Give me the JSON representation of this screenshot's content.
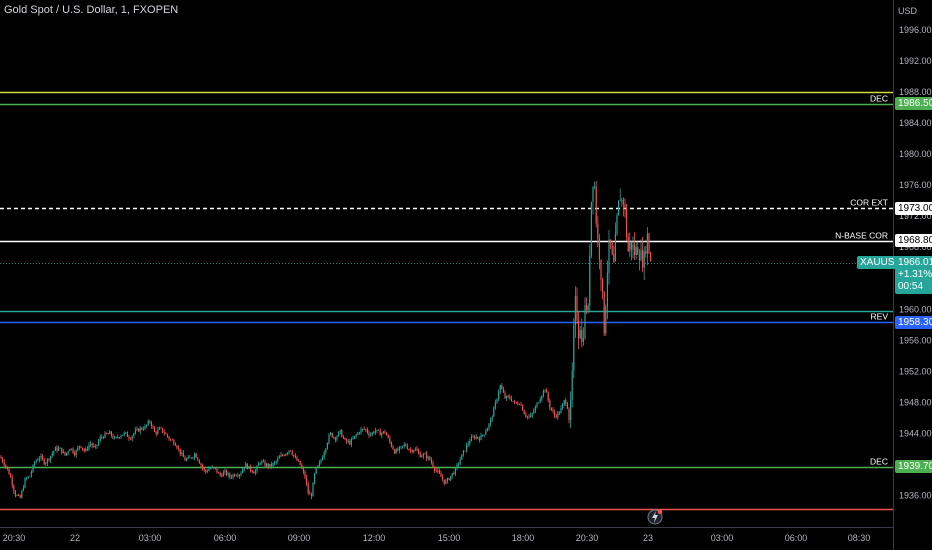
{
  "title": "Gold Spot / U.S. Dollar, 1, FXOPEN",
  "currency": "USD",
  "chart_data": {
    "type": "candlestick",
    "y_axis": {
      "ticks": [
        "1996.00",
        "1992.00",
        "1988.00",
        "1984.00",
        "1980.00",
        "1976.00",
        "1972.00",
        "1968.00",
        "1964.00",
        "1960.00",
        "1956.00",
        "1952.00",
        "1948.00",
        "1944.00",
        "1940.00",
        "1936.00"
      ],
      "range": [
        1933.5,
        1998
      ]
    },
    "x_axis": {
      "ticks": [
        "20:30",
        "22",
        "03:00",
        "06:00",
        "09:00",
        "12:00",
        "15:00",
        "18:00",
        "20:30",
        "23",
        "03:00",
        "06:00",
        "08:30"
      ]
    },
    "price_path": [
      [
        0,
        1941.0
      ],
      [
        5,
        1940.0
      ],
      [
        10,
        1938.6
      ],
      [
        15,
        1936.2
      ],
      [
        20,
        1935.6
      ],
      [
        25,
        1938.0
      ],
      [
        30,
        1938.6
      ],
      [
        35,
        1940.4
      ],
      [
        40,
        1941.0
      ],
      [
        45,
        1940.2
      ],
      [
        50,
        1941.0
      ],
      [
        55,
        1942.0
      ],
      [
        60,
        1942.0
      ],
      [
        65,
        1941.2
      ],
      [
        70,
        1942.2
      ],
      [
        75,
        1941.4
      ],
      [
        80,
        1942.6
      ],
      [
        85,
        1941.6
      ],
      [
        90,
        1942.8
      ],
      [
        95,
        1942.0
      ],
      [
        100,
        1943.4
      ],
      [
        105,
        1943.8
      ],
      [
        110,
        1944.0
      ],
      [
        115,
        1943.2
      ],
      [
        120,
        1943.8
      ],
      [
        125,
        1944.0
      ],
      [
        130,
        1943.4
      ],
      [
        135,
        1944.2
      ],
      [
        140,
        1944.6
      ],
      [
        145,
        1944.8
      ],
      [
        150,
        1945.6
      ],
      [
        155,
        1944.0
      ],
      [
        160,
        1944.6
      ],
      [
        165,
        1944.0
      ],
      [
        170,
        1943.2
      ],
      [
        175,
        1942.8
      ],
      [
        180,
        1941.6
      ],
      [
        185,
        1940.6
      ],
      [
        190,
        1940.8
      ],
      [
        195,
        1941.4
      ],
      [
        200,
        1940.2
      ],
      [
        205,
        1939.0
      ],
      [
        210,
        1939.6
      ],
      [
        215,
        1939.4
      ],
      [
        220,
        1938.6
      ],
      [
        225,
        1939.0
      ],
      [
        230,
        1938.4
      ],
      [
        235,
        1938.8
      ],
      [
        240,
        1938.8
      ],
      [
        245,
        1940.0
      ],
      [
        250,
        1939.4
      ],
      [
        255,
        1939.0
      ],
      [
        260,
        1940.4
      ],
      [
        265,
        1940.0
      ],
      [
        270,
        1939.8
      ],
      [
        275,
        1940.2
      ],
      [
        280,
        1941.0
      ],
      [
        285,
        1941.4
      ],
      [
        290,
        1942.0
      ],
      [
        295,
        1940.8
      ],
      [
        300,
        1940.0
      ],
      [
        305,
        1938.4
      ],
      [
        308,
        1936.4
      ],
      [
        311,
        1935.8
      ],
      [
        315,
        1939.0
      ],
      [
        320,
        1940.2
      ],
      [
        325,
        1942.0
      ],
      [
        330,
        1944.0
      ],
      [
        335,
        1943.4
      ],
      [
        340,
        1944.2
      ],
      [
        345,
        1943.0
      ],
      [
        350,
        1942.8
      ],
      [
        355,
        1943.6
      ],
      [
        360,
        1944.4
      ],
      [
        365,
        1944.6
      ],
      [
        370,
        1943.8
      ],
      [
        375,
        1944.4
      ],
      [
        380,
        1944.0
      ],
      [
        385,
        1944.2
      ],
      [
        390,
        1942.8
      ],
      [
        395,
        1941.6
      ],
      [
        400,
        1942.0
      ],
      [
        405,
        1942.6
      ],
      [
        410,
        1941.8
      ],
      [
        415,
        1942.0
      ],
      [
        420,
        1941.2
      ],
      [
        425,
        1941.2
      ],
      [
        430,
        1940.6
      ],
      [
        435,
        1939.4
      ],
      [
        440,
        1938.6
      ],
      [
        445,
        1937.6
      ],
      [
        450,
        1938.4
      ],
      [
        455,
        1939.2
      ],
      [
        460,
        1940.6
      ],
      [
        465,
        1942.0
      ],
      [
        470,
        1943.2
      ],
      [
        475,
        1943.6
      ],
      [
        480,
        1943.4
      ],
      [
        485,
        1944.2
      ],
      [
        490,
        1945.4
      ],
      [
        495,
        1947.6
      ],
      [
        500,
        1950.2
      ],
      [
        505,
        1948.6
      ],
      [
        510,
        1948.6
      ],
      [
        515,
        1947.8
      ],
      [
        520,
        1948.0
      ],
      [
        525,
        1946.4
      ],
      [
        530,
        1946.0
      ],
      [
        535,
        1947.2
      ],
      [
        540,
        1948.6
      ],
      [
        545,
        1949.8
      ],
      [
        550,
        1947.4
      ],
      [
        555,
        1946.2
      ],
      [
        560,
        1946.8
      ],
      [
        565,
        1948.4
      ],
      [
        568,
        1947.2
      ],
      [
        570,
        1945.6
      ],
      [
        572,
        1950.8
      ],
      [
        574,
        1957.6
      ],
      [
        576,
        1962.0
      ],
      [
        578,
        1956.6
      ],
      [
        580,
        1958.6
      ],
      [
        582,
        1955.2
      ],
      [
        584,
        1958.4
      ],
      [
        586,
        1961.4
      ],
      [
        588,
        1958.4
      ],
      [
        590,
        1968.8
      ],
      [
        592,
        1976.4
      ],
      [
        594,
        1977.4
      ],
      [
        596,
        1972.0
      ],
      [
        598,
        1968.4
      ],
      [
        600,
        1966.8
      ],
      [
        602,
        1962.8
      ],
      [
        604,
        1957.2
      ],
      [
        606,
        1961.6
      ],
      [
        608,
        1966.8
      ],
      [
        610,
        1968.8
      ],
      [
        612,
        1966.4
      ],
      [
        614,
        1965.4
      ],
      [
        616,
        1970.0
      ],
      [
        618,
        1972.6
      ],
      [
        620,
        1974.8
      ],
      [
        622,
        1973.8
      ],
      [
        624,
        1974.2
      ],
      [
        626,
        1970.8
      ],
      [
        628,
        1967.4
      ],
      [
        630,
        1968.4
      ],
      [
        632,
        1968.2
      ],
      [
        635,
        1967.2
      ],
      [
        638,
        1968.0
      ],
      [
        641,
        1966.8
      ],
      [
        644,
        1966.2
      ],
      [
        647,
        1969.8
      ],
      [
        650,
        1966.6
      ],
      [
        652,
        1965.6
      ]
    ],
    "levels": [
      {
        "price": 1988.0,
        "color": "#cddc39",
        "style": "solid",
        "label": ""
      },
      {
        "price": 1986.5,
        "color": "#4caf50",
        "style": "solid",
        "label": "DEC"
      },
      {
        "price": 1973.0,
        "color": "#ffffff",
        "style": "dashed",
        "label": "COR EXT"
      },
      {
        "price": 1968.8,
        "color": "#ffffff",
        "style": "solid",
        "label": "N-BASE COR"
      },
      {
        "price": 1966.01,
        "color": "#26a69a",
        "style": "dotted",
        "label": ""
      },
      {
        "price": 1959.8,
        "color": "#26a69a",
        "style": "solid",
        "label": ""
      },
      {
        "price": 1958.3,
        "color": "#2962ff",
        "style": "solid",
        "label": "REV"
      },
      {
        "price": 1939.7,
        "color": "#4caf50",
        "style": "solid",
        "label": "DEC"
      },
      {
        "price": 1934.3,
        "color": "#ef5350",
        "style": "solid",
        "label": ""
      }
    ],
    "price_tags": [
      {
        "text": "1986.50",
        "bg": "#4caf50",
        "fg": "#ffffff",
        "price": 1986.5
      },
      {
        "text": "1973.00",
        "bg": "#ffffff",
        "fg": "#000000",
        "price": 1973.0
      },
      {
        "text": "1968.80",
        "bg": "#ffffff",
        "fg": "#000000",
        "price": 1968.8
      },
      {
        "text": "1958.30",
        "bg": "#2962ff",
        "fg": "#ffffff",
        "price": 1958.3
      },
      {
        "text": "1939.70",
        "bg": "#4caf50",
        "fg": "#ffffff",
        "price": 1939.7
      }
    ],
    "last_price": {
      "symbol": "XAUUSD",
      "price": "1966.01",
      "change": "+1.31%",
      "countdown": "00:54",
      "value": 1966.01
    }
  }
}
